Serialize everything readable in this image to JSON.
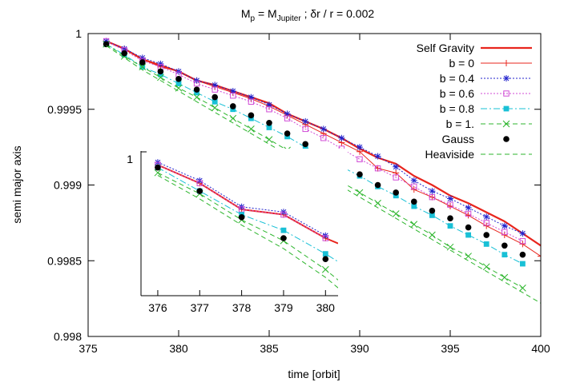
{
  "chart_data": [
    {
      "type": "line",
      "title": "M_p = M_Jupiter  ;   δr / r = 0.002",
      "title_parts": {
        "m_main": "M",
        "m_sub": "p",
        "eq": " = M",
        "jup_sub": "Jupiter",
        "rest": "  ;   δr / r = 0.002"
      },
      "xlabel": "time [orbit]",
      "ylabel": "semi major axis",
      "xlim": [
        375,
        400
      ],
      "ylim": [
        0.998,
        1.0
      ],
      "xticks": [
        375,
        380,
        385,
        390,
        395,
        400
      ],
      "yticks": [
        0.998,
        0.9985,
        0.999,
        0.9995,
        1
      ],
      "ytick_labels": [
        "0.998",
        "0.9985",
        "0.999",
        "0.9995",
        "1"
      ],
      "grid": false,
      "legend": "top-right",
      "series": [
        {
          "name": "Self Gravity",
          "color": "#e8251d",
          "marker": "none",
          "dash": "solid",
          "width": 2.2,
          "x": [
            376,
            377,
            378,
            379,
            380,
            381,
            382,
            383,
            384,
            385,
            386,
            387,
            388,
            389,
            390,
            391,
            392,
            393,
            394,
            395,
            396,
            397,
            398,
            399,
            400
          ],
          "y": [
            0.99995,
            0.9999,
            0.99983,
            0.99979,
            0.99975,
            0.99969,
            0.99966,
            0.99962,
            0.99958,
            0.99954,
            0.99947,
            0.99942,
            0.99937,
            0.99931,
            0.99924,
            0.99918,
            0.99914,
            0.99906,
            0.999,
            0.99893,
            0.99888,
            0.99882,
            0.99876,
            0.99868,
            0.9986
          ]
        },
        {
          "name": "b = 0",
          "color": "#e8251d",
          "marker": "plus",
          "dash": "solid",
          "width": 1,
          "x": [
            376,
            377,
            378,
            379,
            380,
            381,
            382,
            383,
            384,
            385,
            386,
            387,
            388,
            389,
            390,
            391,
            392,
            393,
            394,
            395,
            396,
            397,
            398,
            399,
            400
          ],
          "y": [
            0.99995,
            0.9999,
            0.99983,
            0.99978,
            0.99975,
            0.99969,
            0.99965,
            0.99961,
            0.99957,
            0.99952,
            0.99946,
            0.9994,
            0.99934,
            0.99928,
            0.99922,
            0.99911,
            0.99908,
            0.99897,
            0.99892,
            0.99886,
            0.9988,
            0.99873,
            0.99867,
            0.99861,
            0.99853
          ]
        },
        {
          "name": "b = 0.4",
          "color": "#2222cc",
          "marker": "star",
          "dash": "dotted",
          "width": 1,
          "x": [
            376,
            377,
            378,
            379,
            380,
            381,
            382,
            383,
            384,
            385,
            386,
            387,
            388,
            389,
            390,
            391,
            392,
            393,
            394,
            395,
            396,
            397,
            398,
            399
          ],
          "y": [
            0.99995,
            0.9999,
            0.99984,
            0.9998,
            0.99975,
            0.99969,
            0.99966,
            0.99962,
            0.99958,
            0.99953,
            0.99947,
            0.99942,
            0.99937,
            0.99931,
            0.99925,
            0.99919,
            0.99912,
            0.99903,
            0.99896,
            0.99891,
            0.99885,
            0.99879,
            0.99873,
            0.99868
          ]
        },
        {
          "name": "b = 0.6",
          "color": "#d04bd6",
          "marker": "square-open",
          "dash": "dotted",
          "width": 1,
          "x": [
            376,
            377,
            378,
            379,
            380,
            381,
            382,
            383,
            384,
            385,
            386,
            387,
            388,
            389,
            390,
            391,
            392,
            393,
            394,
            395,
            396,
            397,
            398,
            399
          ],
          "y": [
            0.99995,
            0.99989,
            0.99982,
            0.99978,
            0.99973,
            0.99967,
            0.99963,
            0.99959,
            0.99955,
            0.9995,
            0.99944,
            0.99937,
            0.99931,
            0.99924,
            0.99917,
            0.99911,
            0.99905,
            0.99899,
            0.99892,
            0.99887,
            0.99881,
            0.99875,
            0.99869,
            0.99863
          ]
        },
        {
          "name": "b = 0.8",
          "color": "#19c0d6",
          "marker": "square-filled",
          "dash": "dashdot",
          "width": 1,
          "x": [
            376,
            377,
            378,
            379,
            380,
            381,
            382,
            383,
            384,
            385,
            386,
            387,
            388,
            389,
            390,
            391,
            392,
            393,
            394,
            395,
            396,
            397,
            398,
            399
          ],
          "y": [
            0.99993,
            0.99986,
            0.99978,
            0.99973,
            0.99967,
            0.99961,
            0.99955,
            0.9995,
            0.99944,
            0.99938,
            0.99932,
            0.99925,
            0.99919,
            0.99912,
            0.99906,
            0.99899,
            0.99893,
            0.99886,
            0.9988,
            0.99873,
            0.99867,
            0.99861,
            0.99854,
            0.99848
          ]
        },
        {
          "name": "b = 1.",
          "color": "#2cb52c",
          "marker": "x",
          "dash": "dashed",
          "width": 1,
          "x": [
            376,
            377,
            378,
            379,
            380,
            381,
            382,
            383,
            384,
            385,
            386,
            387,
            388,
            389,
            390,
            391,
            392,
            393,
            394,
            395,
            396,
            397,
            398,
            399
          ],
          "y": [
            0.99993,
            0.99985,
            0.99978,
            0.99971,
            0.99964,
            0.99958,
            0.99951,
            0.99944,
            0.99937,
            0.9993,
            0.99923,
            0.99916,
            0.99909,
            0.99902,
            0.99895,
            0.99888,
            0.99881,
            0.99874,
            0.99867,
            0.99859,
            0.99853,
            0.99846,
            0.99839,
            0.99832
          ]
        },
        {
          "name": "Gauss",
          "color": "#000000",
          "marker": "circle-filled",
          "dash": "none",
          "width": 0,
          "x": [
            376,
            377,
            378,
            379,
            380,
            381,
            382,
            383,
            384,
            385,
            386,
            387,
            388,
            389,
            390,
            391,
            392,
            393,
            394,
            395,
            396,
            397,
            398,
            399
          ],
          "y": [
            0.99993,
            0.99987,
            0.99981,
            0.99975,
            0.9997,
            0.99963,
            0.99958,
            0.99952,
            0.99946,
            0.99941,
            0.99934,
            0.99927,
            0.9992,
            0.99914,
            0.99907,
            0.999,
            0.99895,
            0.99889,
            0.99883,
            0.99878,
            0.99872,
            0.99867,
            0.9986,
            0.99854
          ]
        },
        {
          "name": "Heaviside",
          "color": "#2cb52c",
          "marker": "none",
          "dash": "dashed",
          "width": 1,
          "x": [
            376,
            377,
            378,
            379,
            380,
            381,
            382,
            383,
            384,
            385,
            386,
            387,
            388,
            389,
            390,
            391,
            392,
            393,
            394,
            395,
            396,
            397,
            398,
            399,
            400
          ],
          "y": [
            0.99992,
            0.99984,
            0.99976,
            0.99969,
            0.99962,
            0.99955,
            0.99948,
            0.99941,
            0.99934,
            0.99927,
            0.9992,
            0.99913,
            0.99906,
            0.99899,
            0.99892,
            0.99885,
            0.99878,
            0.99871,
            0.99864,
            0.99857,
            0.9985,
            0.99843,
            0.99836,
            0.99829,
            0.99822
          ]
        }
      ]
    },
    {
      "type": "line",
      "inset": true,
      "xlim": [
        375.6,
        380.3
      ],
      "ylim": [
        0.99945,
        1.0
      ],
      "xticks": [
        376,
        377,
        378,
        379,
        380
      ],
      "ytick_labels": [
        "1"
      ],
      "series": [
        {
          "name": "Self Gravity",
          "color": "#e8251d",
          "marker": "none",
          "dash": "solid",
          "width": 2,
          "x": [
            376,
            377,
            378,
            379,
            380,
            380.3
          ],
          "y": [
            0.99995,
            0.99988,
            0.99978,
            0.99976,
            0.99967,
            0.99965
          ]
        },
        {
          "name": "b = 0",
          "color": "#e8251d",
          "marker": "plus",
          "dash": "solid",
          "width": 1,
          "x": [
            376,
            377,
            378,
            379,
            380
          ],
          "y": [
            0.99995,
            0.99988,
            0.99978,
            0.99976,
            0.99967
          ]
        },
        {
          "name": "b = 0.4",
          "color": "#2222cc",
          "marker": "star",
          "dash": "dotted",
          "width": 1,
          "x": [
            376,
            377,
            378,
            379,
            380
          ],
          "y": [
            0.99996,
            0.99989,
            0.99979,
            0.99977,
            0.99968
          ]
        },
        {
          "name": "b = 0.6",
          "color": "#d04bd6",
          "marker": "square-open",
          "dash": "dotted",
          "width": 1,
          "x": [
            376,
            377,
            378,
            379,
            380
          ],
          "y": [
            0.99995,
            0.99988,
            0.99978,
            0.99976,
            0.99967
          ]
        },
        {
          "name": "b = 0.8",
          "color": "#19c0d6",
          "marker": "square-filled",
          "dash": "dashdot",
          "width": 1,
          "x": [
            376,
            377,
            378,
            379,
            380,
            380.3
          ],
          "y": [
            0.99994,
            0.99985,
            0.99976,
            0.9997,
            0.99961,
            0.99958
          ]
        },
        {
          "name": "b = 1.",
          "color": "#2cb52c",
          "marker": "x",
          "dash": "dashed",
          "width": 1,
          "x": [
            376,
            377,
            378,
            379,
            380,
            380.3
          ],
          "y": [
            0.99992,
            0.99984,
            0.99974,
            0.99966,
            0.99955,
            0.99951
          ]
        },
        {
          "name": "Gauss",
          "color": "#000000",
          "marker": "circle-filled",
          "dash": "none",
          "width": 0,
          "x": [
            376,
            377,
            378,
            379,
            380
          ],
          "y": [
            0.99994,
            0.99985,
            0.99975,
            0.99967,
            0.99959
          ]
        },
        {
          "name": "Heaviside",
          "color": "#2cb52c",
          "marker": "none",
          "dash": "dashed",
          "width": 1,
          "x": [
            376,
            377,
            378,
            379,
            380,
            380.3
          ],
          "y": [
            0.99991,
            0.99982,
            0.99972,
            0.99963,
            0.99952,
            0.99948
          ]
        }
      ]
    }
  ]
}
